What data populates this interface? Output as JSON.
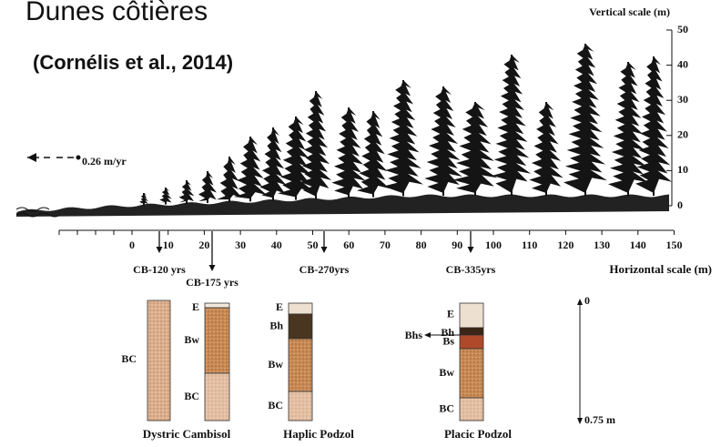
{
  "title": "Dunes côtières",
  "subtitle": "(Cornélis et al., 2014)",
  "vertical_scale": {
    "label": "Vertical scale (m)",
    "ticks": [
      50,
      40,
      30,
      20,
      10,
      0
    ]
  },
  "horizontal_scale": {
    "label": "Horizontal scale (m)",
    "ticks": [
      0,
      10,
      20,
      30,
      40,
      50,
      60,
      70,
      80,
      90,
      100,
      110,
      120,
      130,
      140,
      150
    ]
  },
  "migration_rate": "0.26 m/yr",
  "sites": [
    "CB-120 yrs",
    "CB-175 yrs",
    "CB-270yrs",
    "CB-335yrs"
  ],
  "profiles": [
    {
      "horizons": [
        "BC"
      ]
    },
    {
      "horizons": [
        "E",
        "Bw",
        "BC"
      ]
    },
    {
      "horizons": [
        "E",
        "Bh",
        "Bw",
        "BC"
      ]
    },
    {
      "horizons": [
        "E",
        "Bh",
        "Bs",
        "Bw",
        "BC"
      ],
      "arrow_label": "Bhs"
    }
  ],
  "soil_types": [
    "Dystric Cambisol",
    "Haplic Podzol",
    "Placic Podzol"
  ],
  "depth_scale": {
    "top": "0",
    "bottom": "0.75 m"
  }
}
